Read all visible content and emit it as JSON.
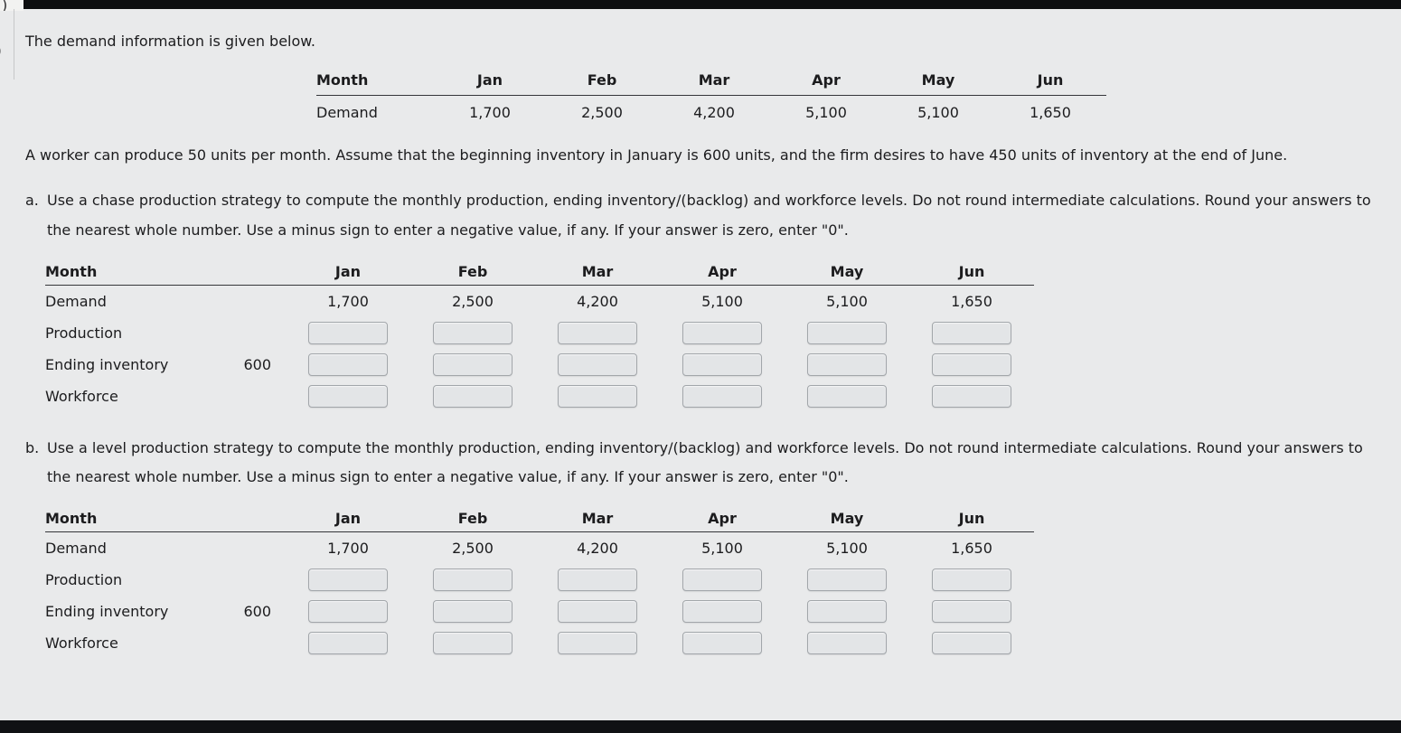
{
  "colors": {
    "page_background": "#e9eaeb",
    "window_edge": "#0d0e10",
    "text": "#1c1c1e",
    "table_rule": "#35363a",
    "input_background": "#e3e5e7",
    "input_border": "#a2a6aa"
  },
  "intro": "The demand information is given below.",
  "months": [
    "Jan",
    "Feb",
    "Mar",
    "Apr",
    "May",
    "Jun"
  ],
  "demand_values": [
    "1,700",
    "2,500",
    "4,200",
    "5,100",
    "5,100",
    "1,650"
  ],
  "demand_table": {
    "col_label": "Month",
    "row_label": "Demand"
  },
  "assumptions": "A worker can produce 50 units per month. Assume that the beginning inventory in January is 600 units, and the firm desires to have 450 units of inventory at the end of June.",
  "part_a": {
    "marker": "a.",
    "text": "Use a chase production strategy to compute the monthly production, ending inventory/(backlog) and workforce levels. Do not round intermediate calculations. Round your answers to the nearest whole number. Use a minus sign to enter a negative value, if any. If your answer is zero, enter \"0\"."
  },
  "part_b": {
    "marker": "b.",
    "text": "Use a level production strategy to compute the monthly production, ending inventory/(backlog) and workforce levels. Do not round intermediate calculations. Round your answers to the nearest whole number. Use a minus sign to enter a negative value, if any. If your answer is zero, enter \"0\"."
  },
  "answer_table": {
    "col_label": "Month",
    "row_labels": {
      "demand": "Demand",
      "production": "Production",
      "ending_inventory": "Ending inventory",
      "workforce": "Workforce"
    },
    "beginning_inventory": "600"
  },
  "edge_glyphs": [
    ")",
    ")"
  ]
}
